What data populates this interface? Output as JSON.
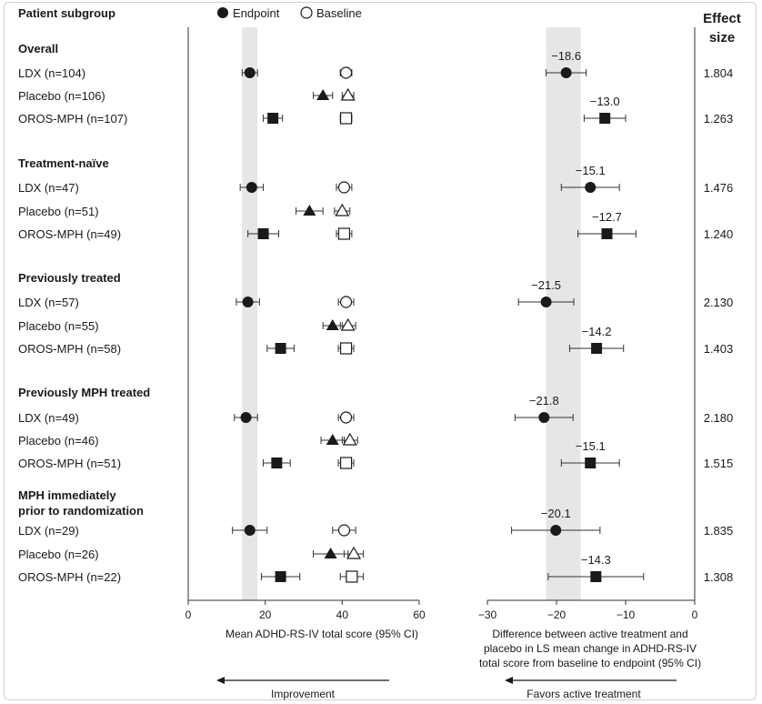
{
  "header": {
    "subgroup_label": "Patient subgroup",
    "legend_endpoint": "Endpoint",
    "legend_baseline": "Baseline",
    "effect_size_line1": "Effect",
    "effect_size_line2": "size"
  },
  "chart_data": [
    {
      "type": "forest",
      "xlabel": "Mean ADHD-RS-IV total score (95% CI)",
      "xlim": [
        0,
        60
      ],
      "xticks": [
        "0",
        "20",
        "40",
        "60"
      ],
      "arrow_label": "Improvement",
      "shaded_band": [
        14,
        18
      ],
      "groups": [
        {
          "title": "Overall",
          "rows": [
            {
              "label": "LDX (n=104)",
              "marker": "circle",
              "endpoint": 16.0,
              "endpoint_ci": [
                14.0,
                18.0
              ],
              "baseline": 41.0,
              "baseline_ci": [
                39.5,
                42.5
              ]
            },
            {
              "label": "Placebo (n=106)",
              "marker": "triangle",
              "endpoint": 35.0,
              "endpoint_ci": [
                32.5,
                37.5
              ],
              "baseline": 41.5,
              "baseline_ci": [
                40.0,
                43.0
              ]
            },
            {
              "label": "OROS-MPH (n=107)",
              "marker": "square",
              "endpoint": 22.0,
              "endpoint_ci": [
                19.5,
                24.5
              ],
              "baseline": 41.0,
              "baseline_ci": [
                39.5,
                42.5
              ]
            }
          ]
        },
        {
          "title": "Treatment-naïve",
          "rows": [
            {
              "label": "LDX (n=47)",
              "marker": "circle",
              "endpoint": 16.5,
              "endpoint_ci": [
                13.5,
                19.5
              ],
              "baseline": 40.5,
              "baseline_ci": [
                38.5,
                42.5
              ]
            },
            {
              "label": "Placebo (n=51)",
              "marker": "triangle",
              "endpoint": 31.5,
              "endpoint_ci": [
                28.0,
                35.0
              ],
              "baseline": 40.0,
              "baseline_ci": [
                38.0,
                42.0
              ]
            },
            {
              "label": "OROS-MPH (n=49)",
              "marker": "square",
              "endpoint": 19.5,
              "endpoint_ci": [
                15.5,
                23.5
              ],
              "baseline": 40.5,
              "baseline_ci": [
                38.5,
                42.5
              ]
            }
          ]
        },
        {
          "title": "Previously treated",
          "rows": [
            {
              "label": "LDX (n=57)",
              "marker": "circle",
              "endpoint": 15.5,
              "endpoint_ci": [
                12.5,
                18.5
              ],
              "baseline": 41.0,
              "baseline_ci": [
                39.0,
                43.0
              ]
            },
            {
              "label": "Placebo (n=55)",
              "marker": "triangle",
              "endpoint": 37.5,
              "endpoint_ci": [
                35.0,
                40.0
              ],
              "baseline": 41.5,
              "baseline_ci": [
                39.5,
                43.5
              ]
            },
            {
              "label": "OROS-MPH (n=58)",
              "marker": "square",
              "endpoint": 24.0,
              "endpoint_ci": [
                20.5,
                27.5
              ],
              "baseline": 41.0,
              "baseline_ci": [
                39.0,
                43.0
              ]
            }
          ]
        },
        {
          "title": "Previously MPH treated",
          "rows": [
            {
              "label": "LDX (n=49)",
              "marker": "circle",
              "endpoint": 15.0,
              "endpoint_ci": [
                12.0,
                18.0
              ],
              "baseline": 41.0,
              "baseline_ci": [
                39.0,
                43.0
              ]
            },
            {
              "label": "Placebo (n=46)",
              "marker": "triangle",
              "endpoint": 37.5,
              "endpoint_ci": [
                34.5,
                40.5
              ],
              "baseline": 42.0,
              "baseline_ci": [
                40.0,
                44.0
              ]
            },
            {
              "label": "OROS-MPH (n=51)",
              "marker": "square",
              "endpoint": 23.0,
              "endpoint_ci": [
                19.5,
                26.5
              ],
              "baseline": 41.0,
              "baseline_ci": [
                39.0,
                43.0
              ]
            }
          ]
        },
        {
          "title": "MPH immediately\nprior to randomization",
          "rows": [
            {
              "label": "LDX (n=29)",
              "marker": "circle",
              "endpoint": 16.0,
              "endpoint_ci": [
                11.5,
                20.5
              ],
              "baseline": 40.5,
              "baseline_ci": [
                37.5,
                43.5
              ]
            },
            {
              "label": "Placebo (n=26)",
              "marker": "triangle",
              "endpoint": 37.0,
              "endpoint_ci": [
                32.5,
                41.5
              ],
              "baseline": 43.0,
              "baseline_ci": [
                40.5,
                45.5
              ]
            },
            {
              "label": "OROS-MPH (n=22)",
              "marker": "square",
              "endpoint": 24.0,
              "endpoint_ci": [
                19.0,
                29.0
              ],
              "baseline": 42.5,
              "baseline_ci": [
                39.5,
                45.5
              ]
            }
          ]
        }
      ]
    },
    {
      "type": "forest",
      "xlabel": "Difference between active treatment and\nplacebo in LS mean change in ADHD-RS-IV\ntotal score from baseline to endpoint (95% CI)",
      "xlim": [
        -30,
        0
      ],
      "xticks": [
        "−30",
        "−20",
        "−10",
        "0"
      ],
      "arrow_label": "Favors active treatment",
      "shaded_band": [
        -21.5,
        -16.5
      ],
      "groups": [
        {
          "rows": [
            {
              "marker": "circle",
              "diff": -18.6,
              "diff_label": "−18.6",
              "ci": [
                -21.5,
                -15.7
              ],
              "effect_size": "1.804"
            },
            {
              "marker": "none"
            },
            {
              "marker": "square",
              "diff": -13.0,
              "diff_label": "−13.0",
              "ci": [
                -16.0,
                -10.0
              ],
              "effect_size": "1.263"
            }
          ]
        },
        {
          "rows": [
            {
              "marker": "circle",
              "diff": -15.1,
              "diff_label": "−15.1",
              "ci": [
                -19.3,
                -10.9
              ],
              "effect_size": "1.476"
            },
            {
              "marker": "none"
            },
            {
              "marker": "square",
              "diff": -12.7,
              "diff_label": "−12.7",
              "ci": [
                -16.9,
                -8.5
              ],
              "effect_size": "1.240"
            }
          ]
        },
        {
          "rows": [
            {
              "marker": "circle",
              "diff": -21.5,
              "diff_label": "−21.5",
              "ci": [
                -25.5,
                -17.5
              ],
              "effect_size": "2.130"
            },
            {
              "marker": "none"
            },
            {
              "marker": "square",
              "diff": -14.2,
              "diff_label": "−14.2",
              "ci": [
                -18.1,
                -10.3
              ],
              "effect_size": "1.403"
            }
          ]
        },
        {
          "rows": [
            {
              "marker": "circle",
              "diff": -21.8,
              "diff_label": "−21.8",
              "ci": [
                -26.0,
                -17.6
              ],
              "effect_size": "2.180"
            },
            {
              "marker": "none"
            },
            {
              "marker": "square",
              "diff": -15.1,
              "diff_label": "−15.1",
              "ci": [
                -19.3,
                -10.9
              ],
              "effect_size": "1.515"
            }
          ]
        },
        {
          "rows": [
            {
              "marker": "circle",
              "diff": -20.1,
              "diff_label": "−20.1",
              "ci": [
                -26.5,
                -13.7
              ],
              "effect_size": "1.835"
            },
            {
              "marker": "none"
            },
            {
              "marker": "square",
              "diff": -14.3,
              "diff_label": "−14.3",
              "ci": [
                -21.2,
                -7.4
              ],
              "effect_size": "1.308"
            }
          ]
        }
      ]
    }
  ],
  "colors": {
    "marker": "#1a1a1a",
    "band": "#e6e6e6",
    "axis": "#333333"
  }
}
